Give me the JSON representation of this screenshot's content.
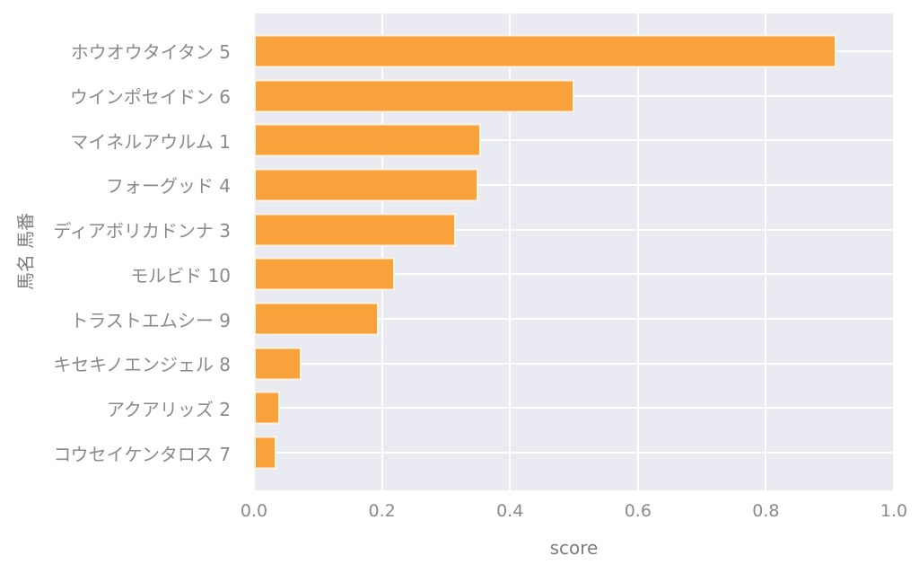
{
  "figure": {
    "background": "#ffffff"
  },
  "chart_data": {
    "type": "bar",
    "orientation": "horizontal",
    "title": "",
    "xlabel": "score",
    "ylabel": "馬名 馬番",
    "categories": [
      "ホウオウタイタン 5",
      "ウインポセイドン 6",
      "マイネルアウルム 1",
      "フォーグッド 4",
      "ディアボリカドンナ 3",
      "モルビド 10",
      "トラストエムシー 9",
      "キセキノエンジェル 8",
      "アクアリッズ 2",
      "コウセイケンタロス 7"
    ],
    "values": [
      0.91,
      0.5,
      0.355,
      0.35,
      0.315,
      0.22,
      0.195,
      0.075,
      0.04,
      0.035
    ],
    "xlim": [
      0.0,
      1.0
    ],
    "xticks": [
      "0.0",
      "0.2",
      "0.4",
      "0.6",
      "0.8",
      "1.0"
    ],
    "grid": true,
    "legend_position": "none",
    "style": {
      "bar_color": "#f9a23c",
      "bar_edge_color": "#fdf3e3",
      "plot_background": "#eaeaf2",
      "grid_color": "#ffffff",
      "tick_label_color": "#8a8a8a",
      "axis_label_color": "#7d7d7d"
    }
  }
}
